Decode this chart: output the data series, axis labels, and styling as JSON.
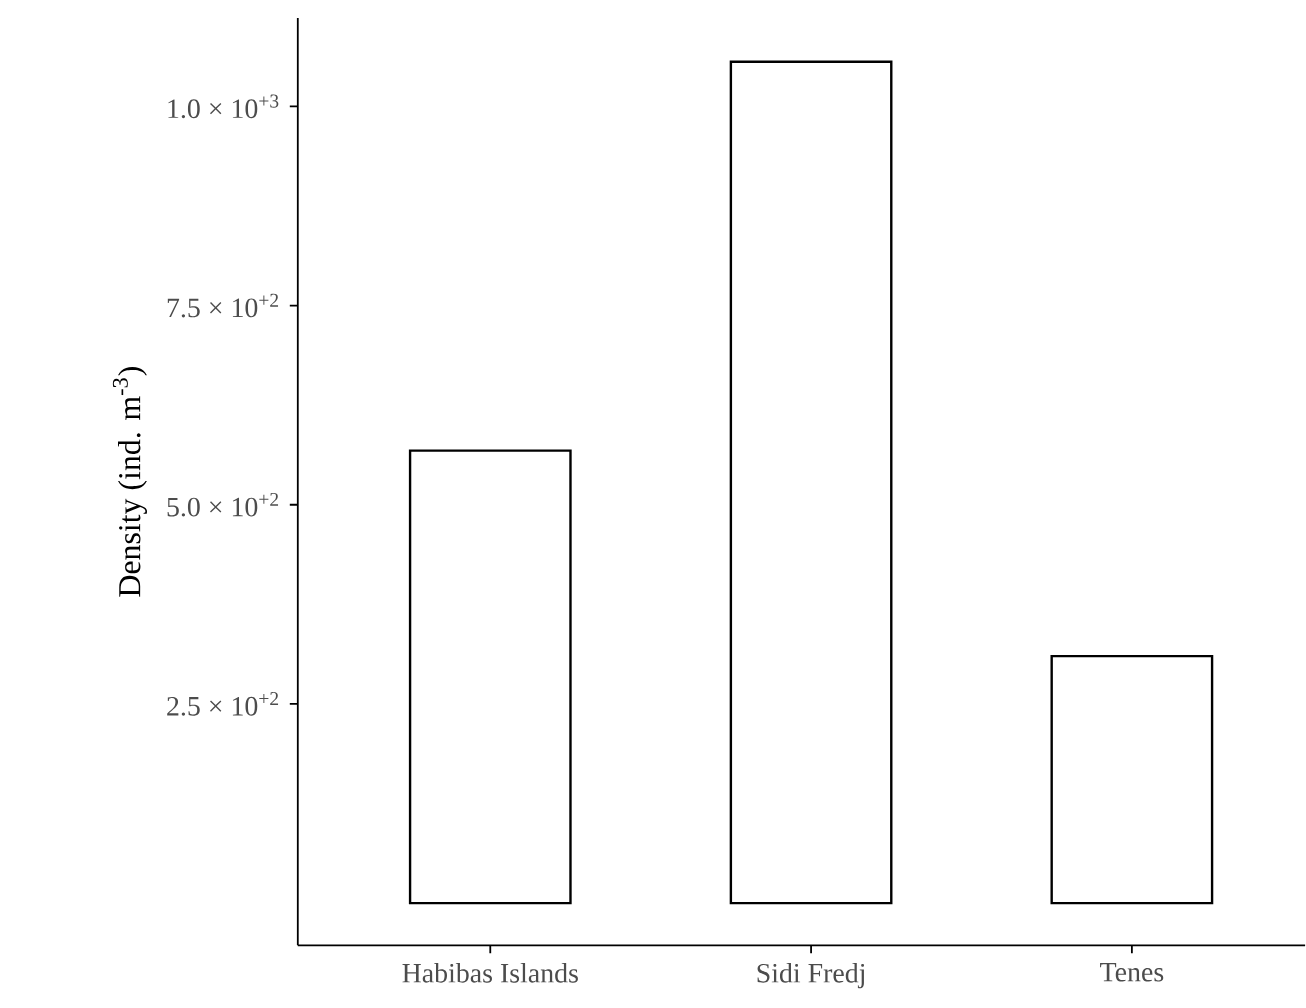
{
  "chart_data": {
    "type": "bar",
    "ylabel": "Density (ind. m$^{-3}$)",
    "categories": [
      "Habibas Islands",
      "Sidi Fredj",
      "Tenes"
    ],
    "values": [
      568,
      1056,
      310
    ],
    "color": "#ffffff",
    "ylim": [
      -53,
      1111
    ],
    "yticks": [
      {
        "value": 250,
        "label": "2.5 × 10$^{+2}$"
      },
      {
        "value": 500,
        "label": "5.0 × 10$^{+2}$"
      },
      {
        "value": 750,
        "label": "7.5 × 10$^{+2}$"
      },
      {
        "value": 1000,
        "label": "1.0 × 10$^{+3}$"
      }
    ],
    "grid": false
  }
}
